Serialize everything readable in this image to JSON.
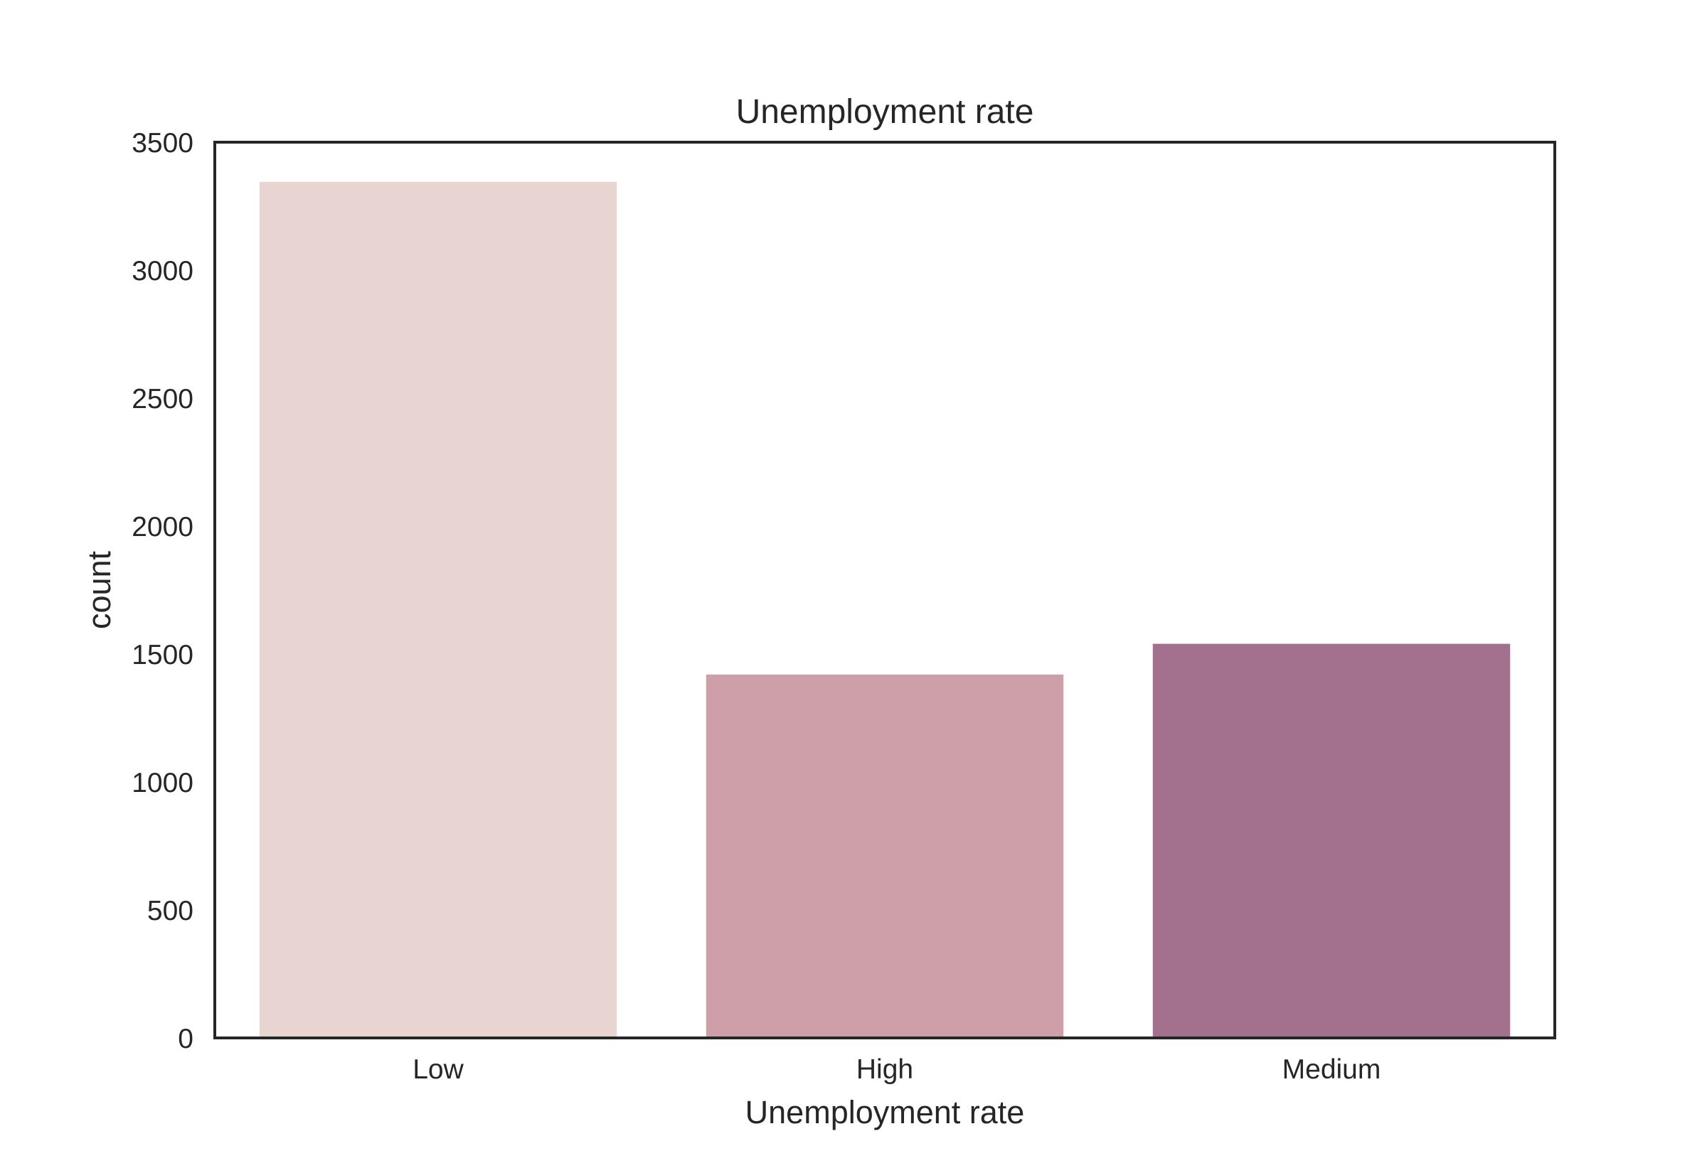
{
  "chart_data": {
    "type": "bar",
    "title": "Unemployment rate",
    "xlabel": "Unemployment rate",
    "ylabel": "count",
    "categories": [
      "Low",
      "High",
      "Medium"
    ],
    "values": [
      3345,
      1420,
      1540
    ],
    "ylim": [
      0,
      3500
    ],
    "yticks": [
      0,
      500,
      1000,
      1500,
      2000,
      2500,
      3000,
      3500
    ],
    "ytick_labels": [
      "0",
      "500",
      "1000",
      "1500",
      "2000",
      "2500",
      "3000",
      "3500"
    ],
    "bar_colors": [
      "#e8d4d0",
      "#ce9ea9",
      "#a3708d"
    ],
    "grid": false,
    "legend": "none"
  },
  "colors": {
    "frame": "#262626",
    "text": "#262626",
    "background": "#ffffff"
  }
}
